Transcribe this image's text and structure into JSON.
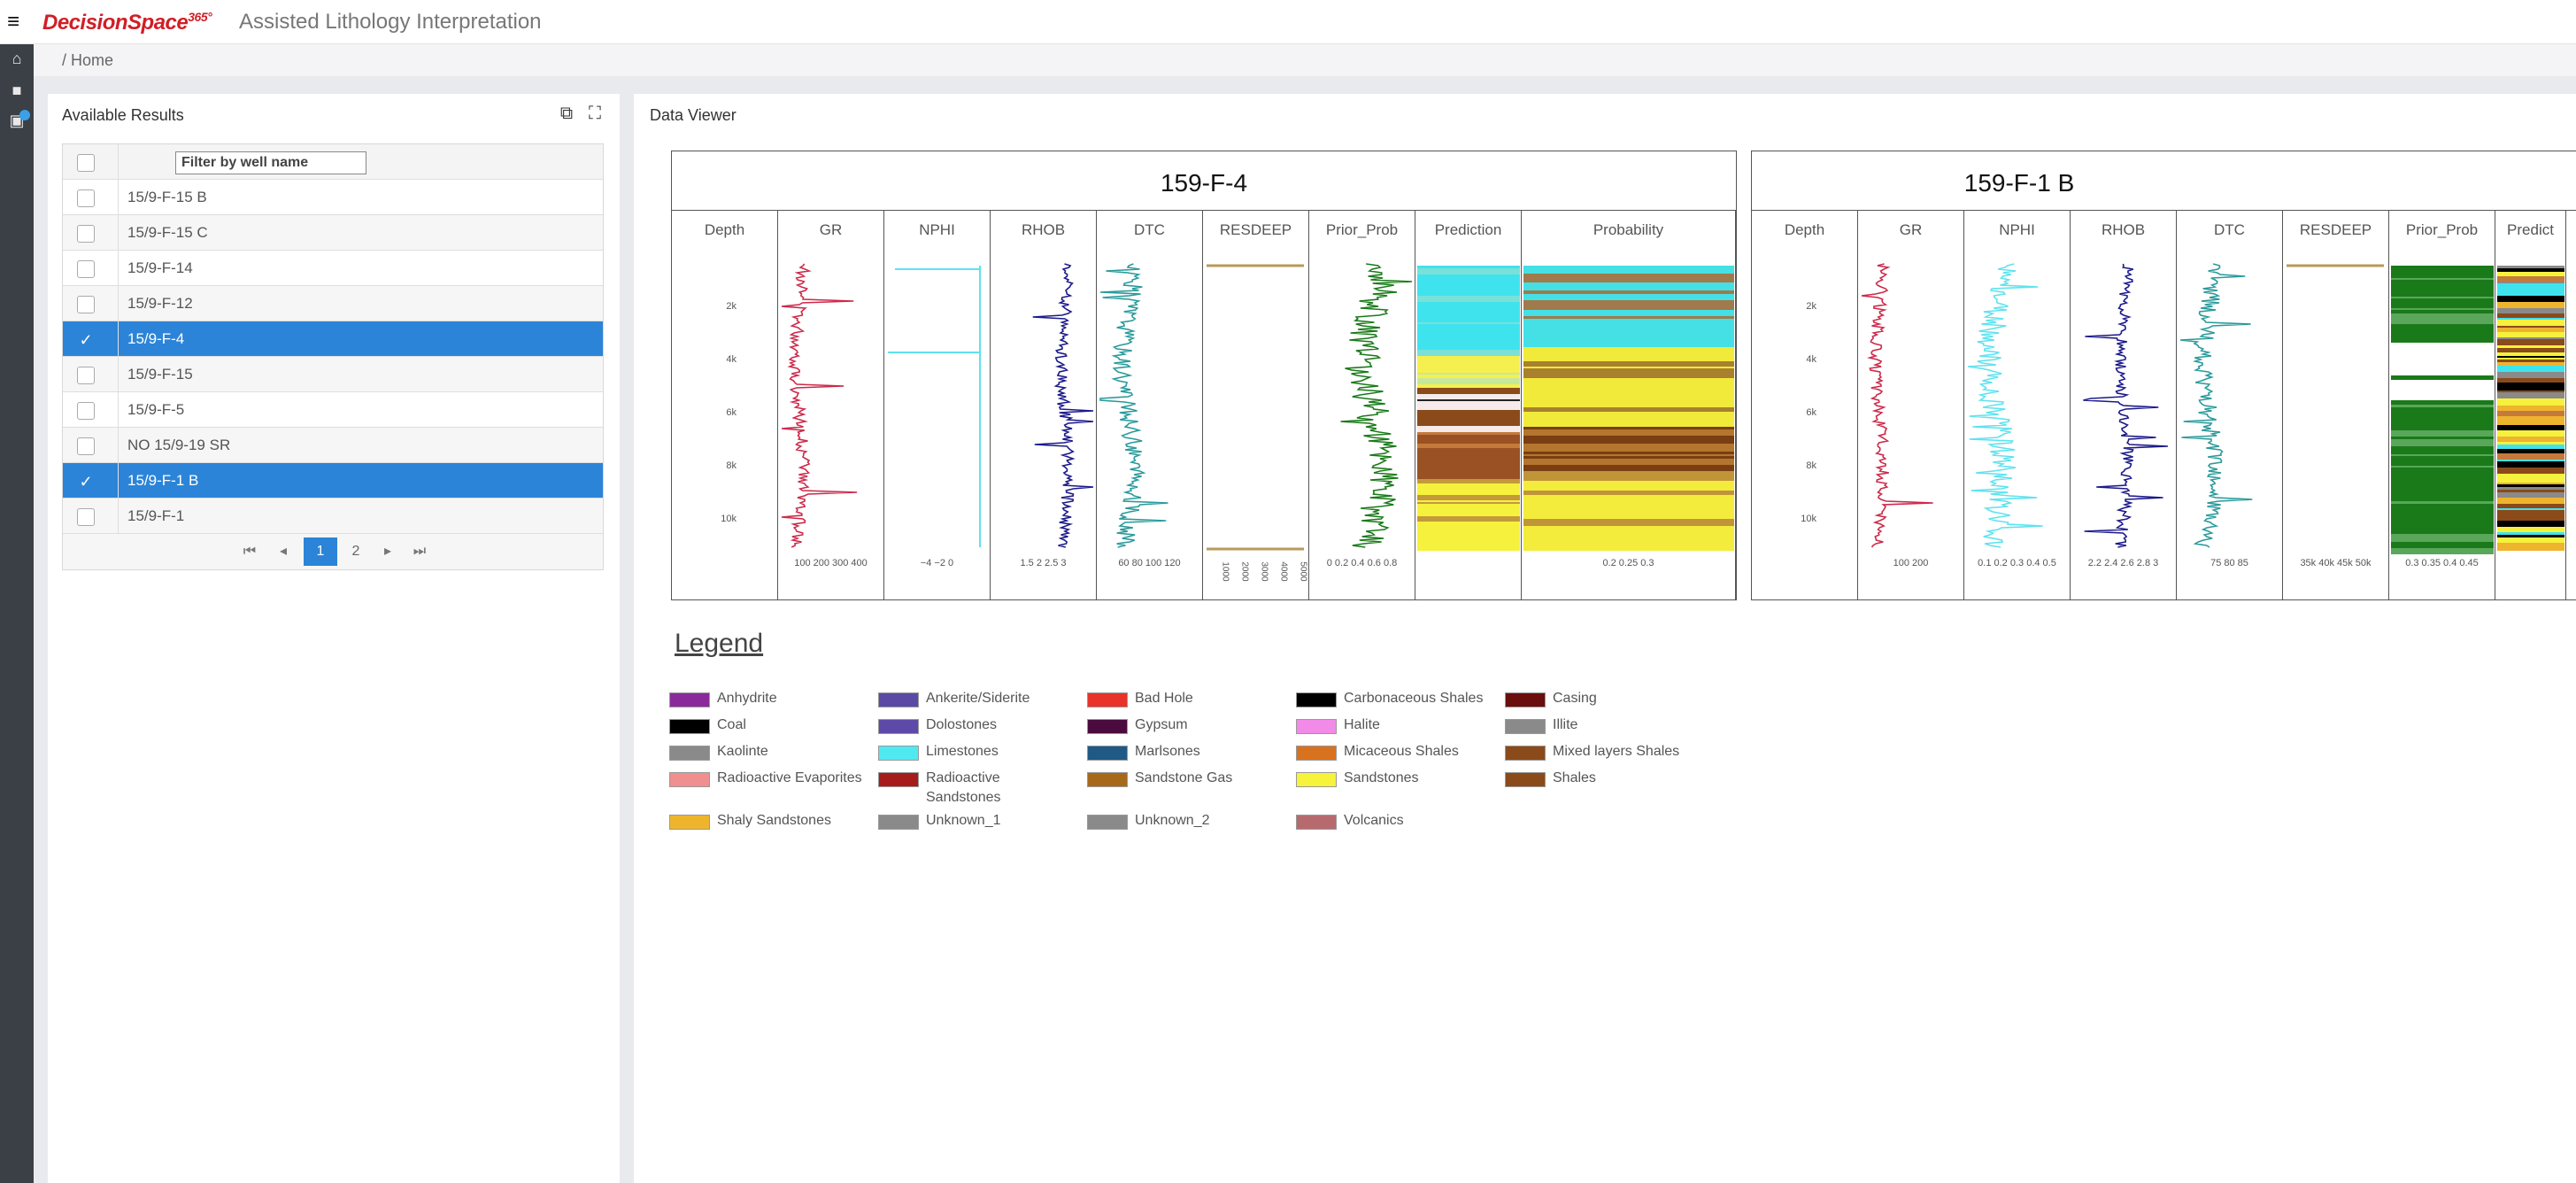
{
  "app": {
    "brand": "DecisionSpace",
    "brand_sup": "365°",
    "title": "Assisted Lithology Interpretation"
  },
  "breadcrumb": "/  Home",
  "left_panel": {
    "title": "Available Results",
    "filter_placeholder": "Filter by well name",
    "rows": [
      {
        "name": "15/9-F-15 B",
        "selected": false
      },
      {
        "name": "15/9-F-15 C",
        "selected": false
      },
      {
        "name": "15/9-F-14",
        "selected": false
      },
      {
        "name": "15/9-F-12",
        "selected": false
      },
      {
        "name": "15/9-F-4",
        "selected": true
      },
      {
        "name": "15/9-F-15",
        "selected": false
      },
      {
        "name": "15/9-F-5",
        "selected": false
      },
      {
        "name": "NO 15/9-19 SR",
        "selected": false
      },
      {
        "name": "15/9-F-1 B",
        "selected": true
      },
      {
        "name": "15/9-F-1",
        "selected": false
      }
    ],
    "pager": {
      "pages": [
        "1",
        "2"
      ],
      "current": "1"
    }
  },
  "right_panel": {
    "title": "Data Viewer",
    "plots": [
      {
        "title": "159-F-4",
        "tracks": [
          "Depth",
          "GR",
          "NPHI",
          "RHOB",
          "DTC",
          "RESDEEP",
          "Prior_Prob",
          "Prediction",
          "Probability"
        ],
        "depth_ticks": [
          "2k",
          "4k",
          "6k",
          "8k",
          "10k"
        ],
        "ticks": {
          "GR": "100 200 300 400",
          "NPHI": "−4      −2        0",
          "RHOB": "1.5     2     2.5    3",
          "DTC": "60   80   100  120",
          "Prior_Prob": "0  0.2 0.4 0.6 0.8",
          "Probability": "0.2                 0.25              0.3"
        },
        "resdeep_ticks": [
          "1000",
          "2000",
          "3000",
          "4000",
          "5000"
        ]
      },
      {
        "title": "159-F-1 B",
        "tracks": [
          "Depth",
          "GR",
          "NPHI",
          "RHOB",
          "DTC",
          "RESDEEP",
          "Prior_Prob",
          "Predict"
        ],
        "depth_ticks": [
          "2k",
          "4k",
          "6k",
          "8k",
          "10k"
        ],
        "ticks": {
          "GR": "100      200",
          "NPHI": "0.1 0.2 0.3 0.4 0.5",
          "RHOB": "2.2 2.4 2.6 2.8  3",
          "DTC": "75     80     85",
          "RESDEEP": "35k 40k 45k 50k",
          "Prior_Prob": "0.3  0.35  0.4  0.45"
        }
      }
    ]
  },
  "legend": {
    "title": "Legend",
    "items": [
      {
        "label": "Anhydrite",
        "color": "#8a2a9a"
      },
      {
        "label": "Ankerite/Siderite",
        "color": "#5a4aa6"
      },
      {
        "label": "Bad Hole",
        "color": "#e8322a"
      },
      {
        "label": "Carbonaceous Shales",
        "color": "#000000"
      },
      {
        "label": "Casing",
        "color": "#6a0e0e"
      },
      {
        "label": "Coal",
        "color": "#000000"
      },
      {
        "label": "Dolostones",
        "color": "#5d4aa8"
      },
      {
        "label": "Gypsum",
        "color": "#4b0b3e"
      },
      {
        "label": "Halite",
        "color": "#f28ae8"
      },
      {
        "label": "Illite",
        "color": "#8a8a8a"
      },
      {
        "label": "Kaolinte",
        "color": "#8a8a8a"
      },
      {
        "label": "Limestones",
        "color": "#4fe9f2"
      },
      {
        "label": "Marlsones",
        "color": "#1f5a86"
      },
      {
        "label": "Micaceous Shales",
        "color": "#d9721f"
      },
      {
        "label": "Mixed layers Shales",
        "color": "#8a4a1a"
      },
      {
        "label": "Radioactive Evaporites",
        "color": "#ef8f8f"
      },
      {
        "label": "Radioactive\nSandstones",
        "color": "#a61c1c"
      },
      {
        "label": "Sandstone Gas",
        "color": "#a8681a"
      },
      {
        "label": "Sandstones",
        "color": "#f7f23a"
      },
      {
        "label": "Shales",
        "color": "#8a4a1a"
      },
      {
        "label": "Shaly Sandstones",
        "color": "#eeb42e"
      },
      {
        "label": "Unknown_1",
        "color": "#8a8a8a"
      },
      {
        "label": "Unknown_2",
        "color": "#8a8a8a"
      },
      {
        "label": "Volcanics",
        "color": "#b66a6e"
      }
    ]
  },
  "colors": {
    "accent": "#2b84d8",
    "gr": "#cc2a4a",
    "nphi": "#5ee2ee",
    "rhob": "#1c1a8a",
    "dtc": "#2a9a9a",
    "resdeep": "#b89a5a",
    "prior": "#1a7a1a"
  }
}
